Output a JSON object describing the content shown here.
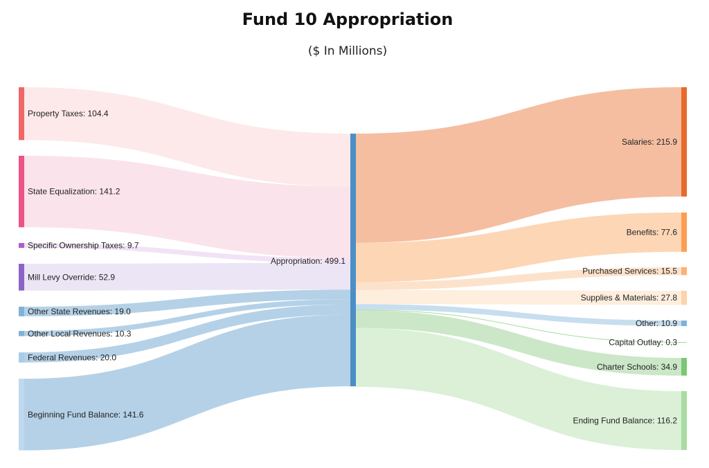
{
  "title": "Fund 10 Appropriation",
  "subtitle": "($ In Millions)",
  "chart_data": {
    "type": "sankey",
    "center": {
      "name": "Appropriation",
      "value": 499.1,
      "label": "Appropriation: 499.1",
      "color": "#4a8fc6"
    },
    "sources": [
      {
        "name": "Property Taxes",
        "value": 104.4,
        "label": "Property Taxes: 104.4",
        "color": "#f06767",
        "link_color": "#fde8e8"
      },
      {
        "name": "State Equalization",
        "value": 141.2,
        "label": "State Equalization: 141.2",
        "color": "#ee5288",
        "link_color": "#fbe2ea"
      },
      {
        "name": "Specific Ownership Taxes",
        "value": 9.7,
        "label": "Specific Ownership Taxes: 9.7",
        "color": "#b05cc9",
        "link_color": "#f0e2f4"
      },
      {
        "name": "Mill Levy Override",
        "value": 52.9,
        "label": "Mill Levy Override: 52.9",
        "color": "#8d63c9",
        "link_color": "#ebe4f4"
      },
      {
        "name": "Other State Revenues",
        "value": 19.0,
        "label": "Other State Revenues: 19.0",
        "color": "#7fb2da",
        "link_color": "#b0cfe6"
      },
      {
        "name": "Other Local Revenues",
        "value": 10.3,
        "label": "Other Local Revenues: 10.3",
        "color": "#7fb2da",
        "link_color": "#b0cfe6"
      },
      {
        "name": "Federal Revenues",
        "value": 20.0,
        "label": "Federal Revenues: 20.0",
        "color": "#a9cbe6",
        "link_color": "#b0cfe6"
      },
      {
        "name": "Beginning Fund Balance",
        "value": 141.6,
        "label": "Beginning Fund Balance: 141.6",
        "color": "#c0d9ee",
        "link_color": "#b0cfe6"
      }
    ],
    "targets": [
      {
        "name": "Salaries",
        "value": 215.9,
        "label": "Salaries: 215.9",
        "color": "#e9692c",
        "link_color": "#f4bb9c"
      },
      {
        "name": "Benefits",
        "value": 77.6,
        "label": "Benefits: 77.6",
        "color": "#fd9d52",
        "link_color": "#fdd4b2"
      },
      {
        "name": "Purchased Services",
        "value": 15.5,
        "label": "Purchased Services: 15.5",
        "color": "#fdb176",
        "link_color": "#fde0c8"
      },
      {
        "name": "Supplies & Materials",
        "value": 27.8,
        "label": "Supplies & Materials: 27.8",
        "color": "#fdd3a8",
        "link_color": "#feeddb"
      },
      {
        "name": "Other",
        "value": 10.9,
        "label": "Other: 10.9",
        "color": "#7fb2da",
        "link_color": "#c4dcee"
      },
      {
        "name": "Capital Outlay",
        "value": 0.3,
        "label": "Capital Outlay: 0.3",
        "color": "#a0d99a",
        "link_color": "#a0d99a"
      },
      {
        "name": "Charter Schools",
        "value": 34.9,
        "label": "Charter Schools: 34.9",
        "color": "#7ac873",
        "link_color": "#c8e6c4"
      },
      {
        "name": "Ending Fund Balance",
        "value": 116.2,
        "label": "Ending Fund Balance: 116.2",
        "color": "#a9dca1",
        "link_color": "#d9efd5"
      }
    ]
  }
}
